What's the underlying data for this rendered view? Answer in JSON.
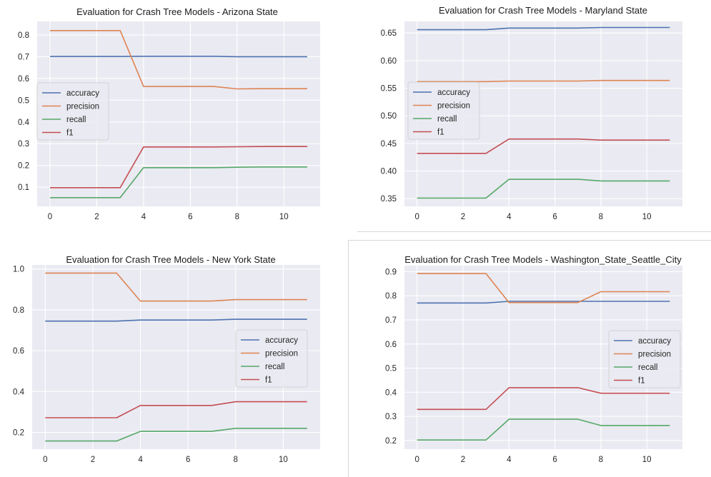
{
  "chart_data": [
    {
      "type": "line",
      "title": "Evaluation for Crash Tree Models - Arizona State",
      "x": [
        0,
        1,
        2,
        3,
        4,
        5,
        6,
        7,
        8,
        9,
        10,
        11
      ],
      "xticks": [
        0,
        2,
        4,
        6,
        8,
        10
      ],
      "xlim": [
        -0.55,
        11.55
      ],
      "yticks": [
        0.1,
        0.2,
        0.3,
        0.4,
        0.5,
        0.6,
        0.7,
        0.8
      ],
      "ylim": [
        0.012,
        0.862
      ],
      "grid": true,
      "legend": "center-left",
      "series": [
        {
          "name": "accuracy",
          "color": "#4c72b0",
          "values": [
            0.701,
            0.701,
            0.701,
            0.701,
            0.702,
            0.702,
            0.702,
            0.702,
            0.7,
            0.7,
            0.7,
            0.7
          ]
        },
        {
          "name": "precision",
          "color": "#dd8452",
          "values": [
            0.82,
            0.82,
            0.82,
            0.82,
            0.563,
            0.563,
            0.563,
            0.563,
            0.552,
            0.553,
            0.553,
            0.553
          ]
        },
        {
          "name": "recall",
          "color": "#55a868",
          "values": [
            0.052,
            0.052,
            0.052,
            0.052,
            0.19,
            0.19,
            0.19,
            0.19,
            0.192,
            0.193,
            0.193,
            0.193
          ]
        },
        {
          "name": "f1",
          "color": "#c44e52",
          "values": [
            0.098,
            0.098,
            0.098,
            0.098,
            0.285,
            0.285,
            0.285,
            0.285,
            0.286,
            0.287,
            0.287,
            0.287
          ]
        }
      ]
    },
    {
      "type": "line",
      "title": "Evaluation for Crash Tree Models - Maryland State",
      "x": [
        0,
        1,
        2,
        3,
        4,
        5,
        6,
        7,
        8,
        9,
        10,
        11
      ],
      "xticks": [
        0,
        2,
        4,
        6,
        8,
        10
      ],
      "xlim": [
        -0.55,
        11.55
      ],
      "yticks": [
        0.35,
        0.4,
        0.45,
        0.5,
        0.55,
        0.6,
        0.65
      ],
      "ytick_labels": [
        "0.35",
        "0.40",
        "0.45",
        "0.50",
        "0.55",
        "0.60",
        "0.65"
      ],
      "ylim": [
        0.336,
        0.671
      ],
      "grid": true,
      "legend": "center-left",
      "series": [
        {
          "name": "accuracy",
          "color": "#4c72b0",
          "values": [
            0.656,
            0.656,
            0.656,
            0.656,
            0.659,
            0.659,
            0.659,
            0.659,
            0.66,
            0.66,
            0.66,
            0.66
          ]
        },
        {
          "name": "precision",
          "color": "#dd8452",
          "values": [
            0.562,
            0.562,
            0.562,
            0.562,
            0.563,
            0.563,
            0.563,
            0.563,
            0.564,
            0.564,
            0.564,
            0.564
          ]
        },
        {
          "name": "recall",
          "color": "#55a868",
          "values": [
            0.351,
            0.351,
            0.351,
            0.351,
            0.385,
            0.385,
            0.385,
            0.385,
            0.382,
            0.382,
            0.382,
            0.382
          ]
        },
        {
          "name": "f1",
          "color": "#c44e52",
          "values": [
            0.432,
            0.432,
            0.432,
            0.432,
            0.458,
            0.458,
            0.458,
            0.458,
            0.456,
            0.456,
            0.456,
            0.456
          ]
        }
      ]
    },
    {
      "type": "line",
      "title": "Evaluation for Crash Tree Models - New York State",
      "x": [
        0,
        1,
        2,
        3,
        4,
        5,
        6,
        7,
        8,
        9,
        10,
        11
      ],
      "xticks": [
        0,
        2,
        4,
        6,
        8,
        10
      ],
      "xlim": [
        -0.55,
        11.55
      ],
      "yticks": [
        0.2,
        0.4,
        0.6,
        0.8,
        1.0
      ],
      "ytick_labels": [
        "0.2",
        "0.4",
        "0.6",
        "0.8",
        "1.0"
      ],
      "ylim": [
        0.118,
        1.02
      ],
      "grid": true,
      "legend": "center-right",
      "series": [
        {
          "name": "accuracy",
          "color": "#4c72b0",
          "values": [
            0.745,
            0.745,
            0.745,
            0.745,
            0.75,
            0.75,
            0.75,
            0.75,
            0.754,
            0.754,
            0.754,
            0.754
          ]
        },
        {
          "name": "precision",
          "color": "#dd8452",
          "values": [
            0.98,
            0.98,
            0.98,
            0.98,
            0.843,
            0.843,
            0.843,
            0.843,
            0.85,
            0.85,
            0.85,
            0.85
          ]
        },
        {
          "name": "recall",
          "color": "#55a868",
          "values": [
            0.158,
            0.158,
            0.158,
            0.158,
            0.205,
            0.205,
            0.205,
            0.205,
            0.22,
            0.22,
            0.22,
            0.22
          ]
        },
        {
          "name": "f1",
          "color": "#c44e52",
          "values": [
            0.272,
            0.272,
            0.272,
            0.272,
            0.332,
            0.332,
            0.332,
            0.332,
            0.35,
            0.35,
            0.35,
            0.35
          ]
        }
      ]
    },
    {
      "type": "line",
      "title": "Evaluation for Crash Tree Models - Washington_State_Seattle_City",
      "x": [
        0,
        1,
        2,
        3,
        4,
        5,
        6,
        7,
        8,
        9,
        10,
        11
      ],
      "xticks": [
        0,
        2,
        4,
        6,
        8,
        10
      ],
      "xlim": [
        -0.55,
        11.55
      ],
      "yticks": [
        0.2,
        0.3,
        0.4,
        0.5,
        0.6,
        0.7,
        0.8,
        0.9
      ],
      "ylim": [
        0.164,
        0.925
      ],
      "grid": true,
      "legend": "center-right",
      "series": [
        {
          "name": "accuracy",
          "color": "#4c72b0",
          "values": [
            0.77,
            0.77,
            0.77,
            0.77,
            0.777,
            0.777,
            0.777,
            0.777,
            0.777,
            0.777,
            0.777,
            0.777
          ]
        },
        {
          "name": "precision",
          "color": "#dd8452",
          "values": [
            0.892,
            0.892,
            0.892,
            0.892,
            0.772,
            0.772,
            0.772,
            0.772,
            0.817,
            0.817,
            0.817,
            0.817
          ]
        },
        {
          "name": "recall",
          "color": "#55a868",
          "values": [
            0.202,
            0.202,
            0.202,
            0.202,
            0.288,
            0.288,
            0.288,
            0.288,
            0.262,
            0.262,
            0.262,
            0.262
          ]
        },
        {
          "name": "f1",
          "color": "#c44e52",
          "values": [
            0.329,
            0.329,
            0.329,
            0.329,
            0.419,
            0.419,
            0.419,
            0.419,
            0.396,
            0.396,
            0.396,
            0.396
          ]
        }
      ]
    }
  ]
}
